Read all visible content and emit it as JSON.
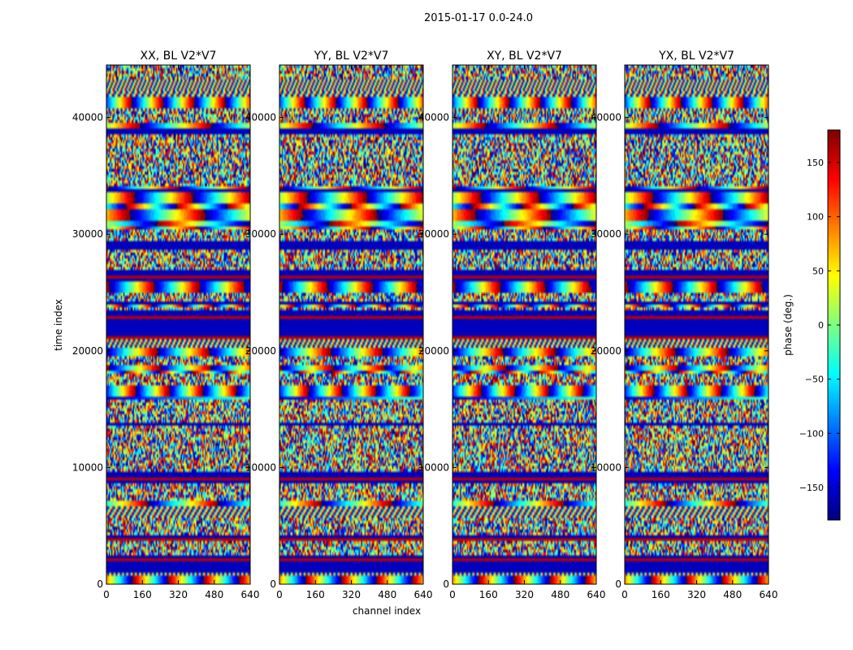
{
  "chart_data": {
    "type": "heatmap",
    "suptitle": "2015-01-17 0.0-24.0",
    "panels": [
      {
        "title": "XX, BL V2*V7",
        "seed": 11
      },
      {
        "title": "YY, BL V2*V7",
        "seed": 23
      },
      {
        "title": "XY, BL V2*V7",
        "seed": 37
      },
      {
        "title": "YX, BL V2*V7",
        "seed": 53
      }
    ],
    "xlabel": "channel index",
    "ylabel": "time index",
    "xticks": [
      0,
      160,
      320,
      480,
      640
    ],
    "yticks": [
      0,
      10000,
      20000,
      30000,
      40000
    ],
    "xlim": [
      0,
      640
    ],
    "ylim": [
      0,
      44500
    ],
    "colorbar": {
      "label": "phase (deg.)",
      "ticks": [
        150,
        100,
        50,
        0,
        -50,
        -100,
        -150
      ],
      "tick_labels": [
        "150",
        "100",
        "50",
        "0",
        "−50",
        "−100",
        "−150"
      ],
      "vmin": -180,
      "vmax": 180,
      "colormap": "jet"
    }
  }
}
